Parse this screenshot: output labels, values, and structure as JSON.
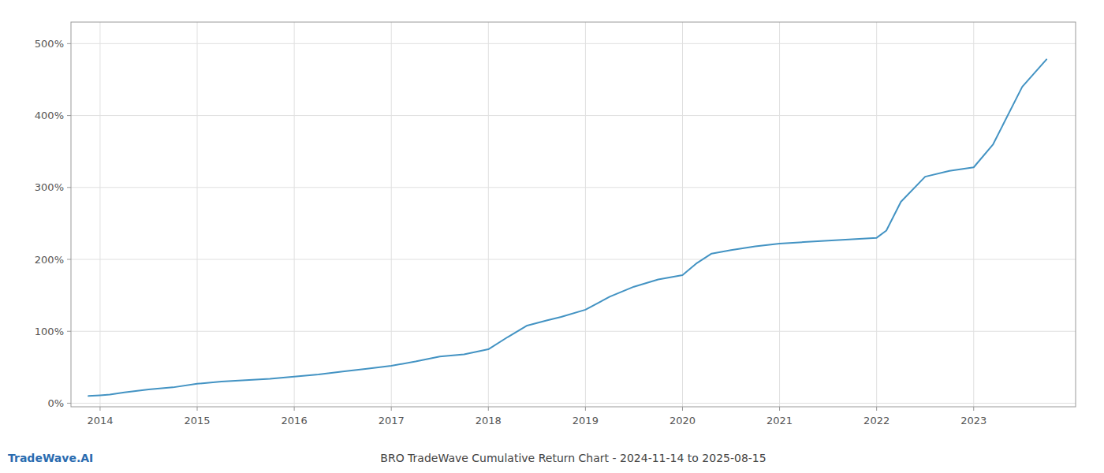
{
  "chart_data": {
    "type": "line",
    "title": "BRO TradeWave Cumulative Return Chart - 2024-11-14 to 2025-08-15",
    "annotations": [
      "TradeWave.AI"
    ],
    "color": "#4393c3",
    "grid": true,
    "x": [
      2013.88,
      2014.0,
      2014.1,
      2014.25,
      2014.5,
      2014.75,
      2015.0,
      2015.25,
      2015.5,
      2015.75,
      2016.0,
      2016.25,
      2016.5,
      2016.75,
      2017.0,
      2017.25,
      2017.5,
      2017.75,
      2018.0,
      2018.2,
      2018.4,
      2018.6,
      2018.75,
      2019.0,
      2019.25,
      2019.5,
      2019.75,
      2020.0,
      2020.15,
      2020.3,
      2020.5,
      2020.75,
      2021.0,
      2021.25,
      2021.5,
      2021.75,
      2022.0,
      2022.1,
      2022.25,
      2022.5,
      2022.75,
      2023.0,
      2023.2,
      2023.5,
      2023.75
    ],
    "values": [
      10,
      11,
      12,
      15,
      19,
      22,
      27,
      30,
      32,
      34,
      37,
      40,
      44,
      48,
      52,
      58,
      65,
      68,
      75,
      92,
      108,
      115,
      120,
      130,
      148,
      162,
      172,
      178,
      195,
      208,
      213,
      218,
      222,
      224,
      226,
      228,
      230,
      240,
      280,
      315,
      323,
      328,
      360,
      440,
      478
    ],
    "xlim": [
      2013.7,
      2024.05
    ],
    "xticks": [
      2014,
      2015,
      2016,
      2017,
      2018,
      2019,
      2020,
      2021,
      2022,
      2023
    ],
    "ylim": [
      -5,
      530
    ],
    "yticks": [
      {
        "value": 0,
        "label": "0%"
      },
      {
        "value": 100,
        "label": "100%"
      },
      {
        "value": 200,
        "label": "200%"
      },
      {
        "value": 300,
        "label": "300%"
      },
      {
        "value": 400,
        "label": "400%"
      },
      {
        "value": 500,
        "label": "500%"
      }
    ]
  }
}
